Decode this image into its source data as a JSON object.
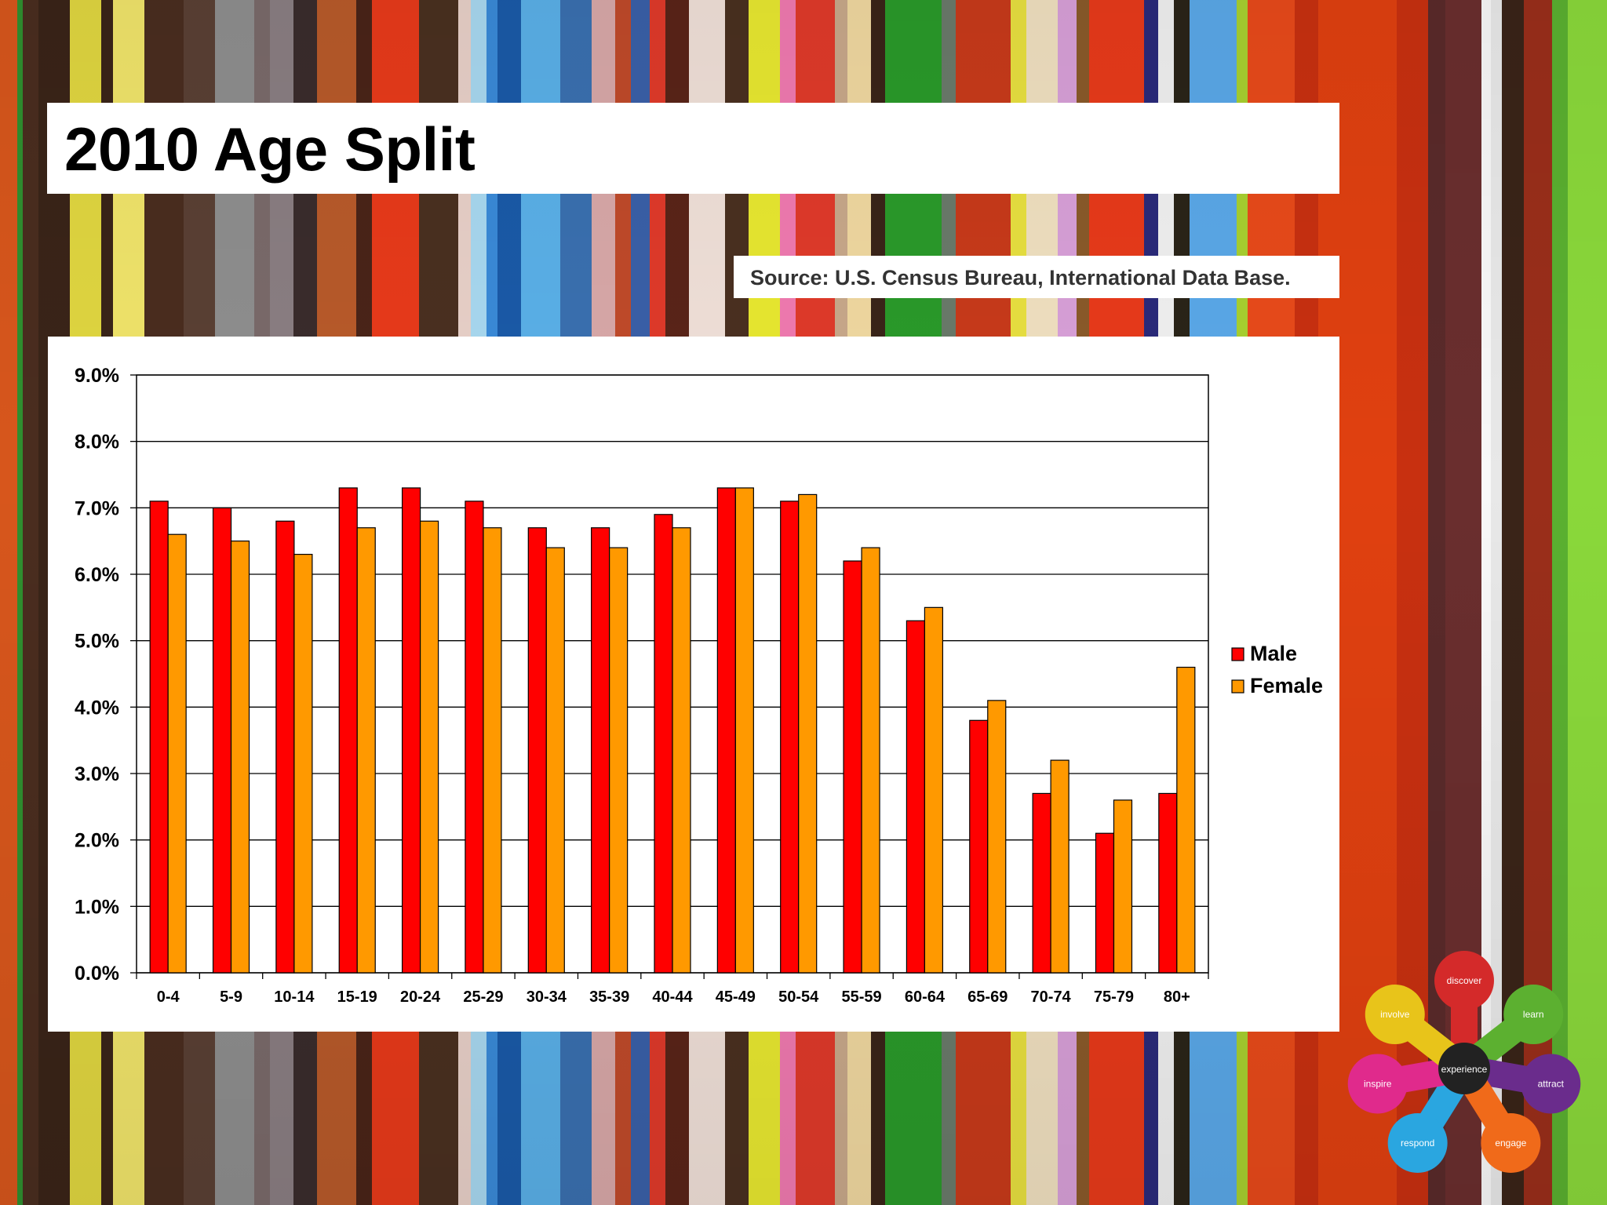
{
  "slide": {
    "title": "2010 Age Split",
    "source": "Source: U.S. Census Bureau, International Data Base."
  },
  "chart_data": {
    "type": "bar",
    "categories": [
      "0-4",
      "5-9",
      "10-14",
      "15-19",
      "20-24",
      "25-29",
      "30-34",
      "35-39",
      "40-44",
      "45-49",
      "50-54",
      "55-59",
      "60-64",
      "65-69",
      "70-74",
      "75-79",
      "80+"
    ],
    "series": [
      {
        "name": "Male",
        "color": "#ff0000",
        "values": [
          7.1,
          7.0,
          6.8,
          7.3,
          7.3,
          7.1,
          6.7,
          6.7,
          6.9,
          7.3,
          7.1,
          6.2,
          5.3,
          3.8,
          2.7,
          2.1,
          2.7
        ]
      },
      {
        "name": "Female",
        "color": "#ff9900",
        "values": [
          6.6,
          6.5,
          6.3,
          6.7,
          6.8,
          6.7,
          6.4,
          6.4,
          6.7,
          7.3,
          7.2,
          6.4,
          5.5,
          4.1,
          3.2,
          2.6,
          4.6
        ]
      }
    ],
    "y_ticks": [
      "0.0%",
      "1.0%",
      "2.0%",
      "3.0%",
      "4.0%",
      "5.0%",
      "6.0%",
      "7.0%",
      "8.0%",
      "9.0%"
    ],
    "ylim": [
      0,
      9
    ],
    "grid": true,
    "legend_position": "right"
  },
  "logo": {
    "center": "experience",
    "petals": [
      {
        "label": "discover",
        "color": "#d42a2a"
      },
      {
        "label": "learn",
        "color": "#5cb030"
      },
      {
        "label": "attract",
        "color": "#6a2c8c"
      },
      {
        "label": "engage",
        "color": "#f06a1a"
      },
      {
        "label": "respond",
        "color": "#2aa6e0"
      },
      {
        "label": "inspire",
        "color": "#e02a8c"
      },
      {
        "label": "involve",
        "color": "#e8c41a"
      }
    ]
  }
}
